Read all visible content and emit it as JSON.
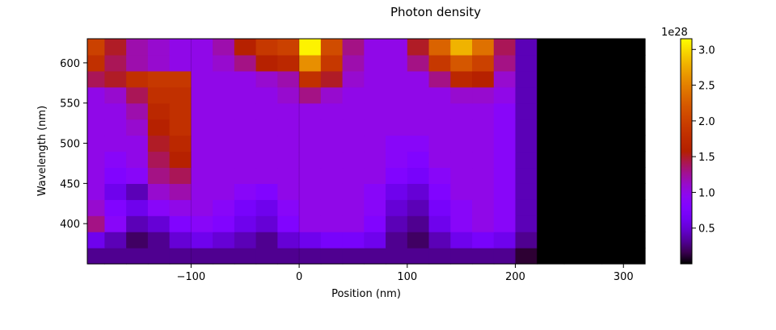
{
  "chart_data": {
    "type": "heatmap",
    "title": "Photon density",
    "xlabel": "Position (nm)",
    "ylabel": "Wavelength (nm)",
    "xlim": [
      -196,
      320
    ],
    "ylim": [
      350,
      630
    ],
    "x_ticks": [
      -100,
      0,
      100,
      200,
      300
    ],
    "y_ticks": [
      400,
      450,
      500,
      550,
      600
    ],
    "colorbar": {
      "colormap": "gnuplot",
      "range": [
        0,
        3.15
      ],
      "ticks": [
        0.5,
        1.0,
        1.5,
        2.0,
        2.5,
        3.0
      ],
      "offset_label": "1e28"
    },
    "layer_boundaries_nm": [
      -100,
      0,
      220
    ],
    "x": [
      -190,
      -170,
      -150,
      -130,
      -110,
      -90,
      -70,
      -50,
      -30,
      -10,
      10,
      30,
      50,
      70,
      90,
      110,
      130,
      150,
      170,
      190,
      210,
      230,
      260,
      300
    ],
    "y": [
      360,
      380,
      400,
      420,
      440,
      460,
      480,
      500,
      520,
      540,
      560,
      580,
      600,
      620
    ],
    "z": [
      [
        0.3,
        0.3,
        0.3,
        0.3,
        0.3,
        0.3,
        0.3,
        0.3,
        0.3,
        0.3,
        0.3,
        0.3,
        0.3,
        0.3,
        0.3,
        0.3,
        0.3,
        0.3,
        0.3,
        0.3,
        0.1,
        0.0,
        0.0,
        0.0
      ],
      [
        0.6,
        0.4,
        0.2,
        0.3,
        0.5,
        0.6,
        0.5,
        0.4,
        0.3,
        0.5,
        0.6,
        0.7,
        0.7,
        0.6,
        0.3,
        0.2,
        0.4,
        0.6,
        0.7,
        0.6,
        0.3,
        0.0,
        0.0,
        0.0
      ],
      [
        1.3,
        0.9,
        0.4,
        0.5,
        0.8,
        0.9,
        0.8,
        0.6,
        0.5,
        0.8,
        1.0,
        1.0,
        1.0,
        0.8,
        0.4,
        0.3,
        0.6,
        0.9,
        1.0,
        0.9,
        0.4,
        0.0,
        0.0,
        0.0
      ],
      [
        1.1,
        0.8,
        0.6,
        0.9,
        1.0,
        1.0,
        0.9,
        0.7,
        0.6,
        0.9,
        1.0,
        1.0,
        1.0,
        0.9,
        0.5,
        0.4,
        0.7,
        0.9,
        1.0,
        0.9,
        0.4,
        0.0,
        0.0,
        0.0
      ],
      [
        1.0,
        0.6,
        0.4,
        1.1,
        1.2,
        1.0,
        1.0,
        0.9,
        0.8,
        1.0,
        1.0,
        1.0,
        1.0,
        0.9,
        0.6,
        0.5,
        0.8,
        1.0,
        1.0,
        0.9,
        0.4,
        0.0,
        0.0,
        0.0
      ],
      [
        1.0,
        0.8,
        0.9,
        1.3,
        1.4,
        1.0,
        1.0,
        1.0,
        1.0,
        1.0,
        1.0,
        1.0,
        1.0,
        1.0,
        0.8,
        0.7,
        0.9,
        1.0,
        1.0,
        0.9,
        0.4,
        0.0,
        0.0,
        0.0
      ],
      [
        1.0,
        0.9,
        1.0,
        1.4,
        1.6,
        1.0,
        1.0,
        1.0,
        1.0,
        1.0,
        1.0,
        1.0,
        1.0,
        1.0,
        0.9,
        0.8,
        1.0,
        1.0,
        1.0,
        0.9,
        0.4,
        0.0,
        0.0,
        0.0
      ],
      [
        1.0,
        1.0,
        1.0,
        1.5,
        1.7,
        1.0,
        1.0,
        1.0,
        1.0,
        1.0,
        1.0,
        1.0,
        1.0,
        1.0,
        0.9,
        0.9,
        1.0,
        1.0,
        1.0,
        0.9,
        0.4,
        0.0,
        0.0,
        0.0
      ],
      [
        1.0,
        1.0,
        1.1,
        1.6,
        1.8,
        1.0,
        1.0,
        1.0,
        1.0,
        1.0,
        1.0,
        1.0,
        1.0,
        1.0,
        1.0,
        1.0,
        1.0,
        1.0,
        1.0,
        0.9,
        0.4,
        0.0,
        0.0,
        0.0
      ],
      [
        1.0,
        1.0,
        1.2,
        1.7,
        1.8,
        1.0,
        1.0,
        1.0,
        1.0,
        1.0,
        1.0,
        1.0,
        1.0,
        1.0,
        1.0,
        1.0,
        1.0,
        1.0,
        1.0,
        0.9,
        0.4,
        0.0,
        0.0,
        0.0
      ],
      [
        1.0,
        1.1,
        1.4,
        1.8,
        1.8,
        1.0,
        1.0,
        1.0,
        1.0,
        1.1,
        1.3,
        1.1,
        1.0,
        1.0,
        1.0,
        1.0,
        1.0,
        1.1,
        1.1,
        1.0,
        0.4,
        0.0,
        0.0,
        0.0
      ],
      [
        1.4,
        1.5,
        1.8,
        1.9,
        1.9,
        1.0,
        1.0,
        1.0,
        1.1,
        1.2,
        1.8,
        1.5,
        1.1,
        1.0,
        1.0,
        1.0,
        1.3,
        1.7,
        1.6,
        1.1,
        0.4,
        0.0,
        0.0,
        0.0
      ],
      [
        1.8,
        1.4,
        1.2,
        1.1,
        1.0,
        1.0,
        1.1,
        1.3,
        1.6,
        1.7,
        2.6,
        1.9,
        1.2,
        1.0,
        1.0,
        1.3,
        1.9,
        2.2,
        2.0,
        1.3,
        0.4,
        0.0,
        0.0,
        0.0
      ],
      [
        2.0,
        1.5,
        1.2,
        1.1,
        1.0,
        1.0,
        1.2,
        1.6,
        1.9,
        2.0,
        3.1,
        2.1,
        1.3,
        1.0,
        1.0,
        1.5,
        2.3,
        2.8,
        2.4,
        1.4,
        0.4,
        0.0,
        0.0,
        0.0
      ]
    ]
  }
}
